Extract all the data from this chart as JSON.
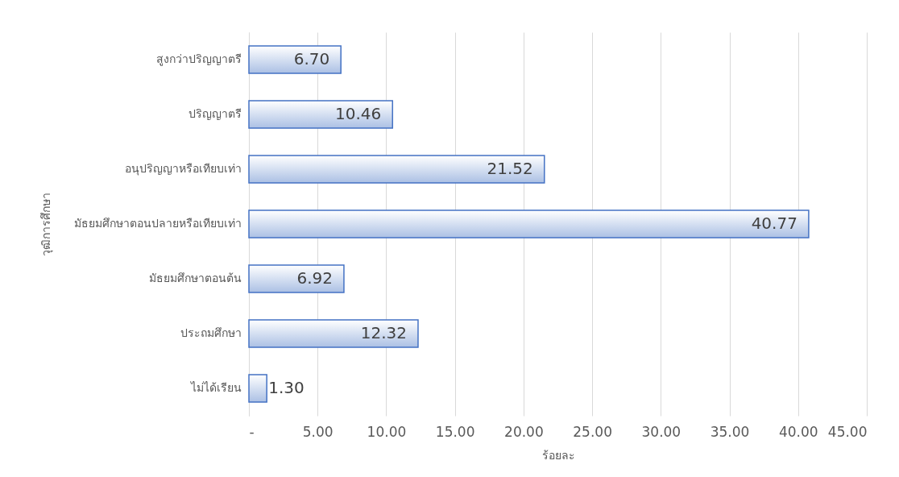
{
  "chart_data": {
    "type": "bar",
    "orientation": "horizontal",
    "xlabel": "ร้อยละ",
    "ylabel": "วุฒิการศึกษา",
    "categories": [
      "สูงกว่าปริญญาตรี",
      "ปริญญาตรี",
      "อนุปริญญาหรือเทียบเท่า",
      "มัธยมศึกษาตอนปลายหรือเทียบเท่า",
      "มัธยมศึกษาตอนต้น",
      "ประถมศึกษา",
      "ไม่ได้เรียน"
    ],
    "values": [
      6.7,
      10.46,
      21.52,
      40.77,
      6.92,
      12.32,
      1.3
    ],
    "value_labels": [
      "6.70",
      "10.46",
      "21.52",
      "40.77",
      "6.92",
      "12.32",
      "1.30"
    ],
    "color": "#4472c4",
    "xlim": [
      0,
      45
    ],
    "xticks": [
      {
        "value": 0,
        "label": "-"
      },
      {
        "value": 5,
        "label": "5.00"
      },
      {
        "value": 10,
        "label": "10.00"
      },
      {
        "value": 15,
        "label": "15.00"
      },
      {
        "value": 20,
        "label": "20.00"
      },
      {
        "value": 25,
        "label": "25.00"
      },
      {
        "value": 30,
        "label": "30.00"
      },
      {
        "value": 35,
        "label": "35.00"
      },
      {
        "value": 40,
        "label": "40.00"
      },
      {
        "value": 45,
        "label": "45.00"
      }
    ],
    "grid": "x"
  }
}
